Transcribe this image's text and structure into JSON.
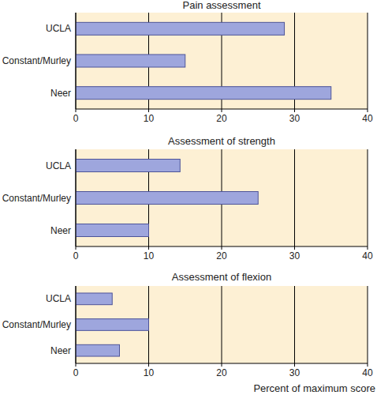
{
  "chart_data": [
    {
      "type": "bar",
      "orientation": "horizontal",
      "title": "Pain assessment",
      "categories": [
        "UCLA",
        "Constant/Murley",
        "Neer"
      ],
      "values": [
        28.6,
        15,
        35
      ],
      "color": "#9ea6dd",
      "xlim": [
        0,
        40
      ],
      "xticks": [
        0,
        10,
        20,
        30,
        40
      ],
      "grid": true
    },
    {
      "type": "bar",
      "orientation": "horizontal",
      "title": "Assessment of strength",
      "categories": [
        "UCLA",
        "Constant/Murley",
        "Neer"
      ],
      "values": [
        14.3,
        25,
        10
      ],
      "color": "#9ea6dd",
      "xlim": [
        0,
        40
      ],
      "xticks": [
        0,
        10,
        20,
        30,
        40
      ],
      "grid": true
    },
    {
      "type": "bar",
      "orientation": "horizontal",
      "title": "Assessment of flexion",
      "categories": [
        "UCLA",
        "Constant/Murley",
        "Neer"
      ],
      "values": [
        5,
        10,
        6
      ],
      "color": "#9ea6dd",
      "xlim": [
        0,
        40
      ],
      "xticks": [
        0,
        10,
        20,
        30,
        40
      ],
      "grid": true,
      "xlabel": "Percent of maximum score"
    }
  ]
}
